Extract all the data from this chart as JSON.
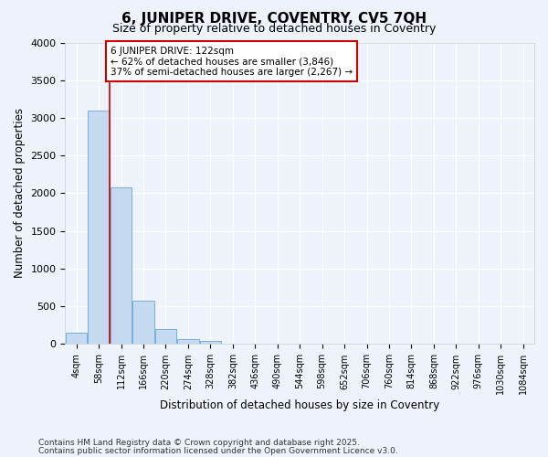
{
  "title": "6, JUNIPER DRIVE, COVENTRY, CV5 7QH",
  "subtitle": "Size of property relative to detached houses in Coventry",
  "xlabel": "Distribution of detached houses by size in Coventry",
  "ylabel": "Number of detached properties",
  "footnote1": "Contains HM Land Registry data © Crown copyright and database right 2025.",
  "footnote2": "Contains public sector information licensed under the Open Government Licence v3.0.",
  "bar_labels": [
    "4sqm",
    "58sqm",
    "112sqm",
    "166sqm",
    "220sqm",
    "274sqm",
    "328sqm",
    "382sqm",
    "436sqm",
    "490sqm",
    "544sqm",
    "598sqm",
    "652sqm",
    "706sqm",
    "760sqm",
    "814sqm",
    "868sqm",
    "922sqm",
    "976sqm",
    "1030sqm",
    "1084sqm"
  ],
  "bar_values": [
    150,
    3100,
    2080,
    580,
    205,
    70,
    45,
    0,
    0,
    0,
    0,
    0,
    0,
    0,
    0,
    0,
    0,
    0,
    0,
    0,
    0
  ],
  "bar_color": "#c5d9f0",
  "bar_edge_color": "#7aaed6",
  "background_color": "#eef2fb",
  "grid_color": "#ffffff",
  "vline_x": 1.5,
  "vline_color": "#cc0000",
  "annotation_text": "6 JUNIPER DRIVE: 122sqm\n← 62% of detached houses are smaller (3,846)\n37% of semi-detached houses are larger (2,267) →",
  "annotation_box_color": "#cc0000",
  "ylim": [
    0,
    4000
  ],
  "yticks": [
    0,
    500,
    1000,
    1500,
    2000,
    2500,
    3000,
    3500,
    4000
  ]
}
